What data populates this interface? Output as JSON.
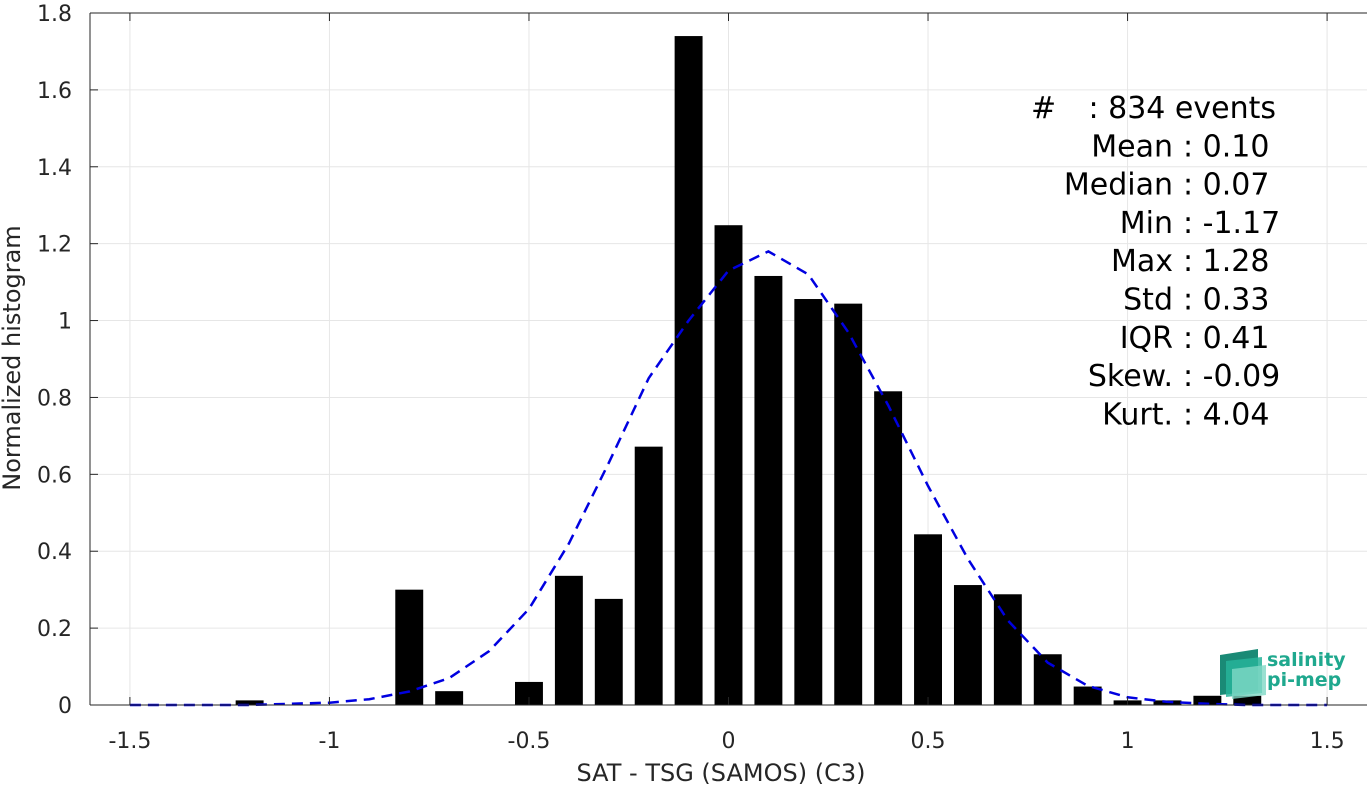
{
  "chart_data": {
    "type": "bar",
    "xlabel": "SAT - TSG (SAMOS) (C3)",
    "ylabel": "Normalized histogram",
    "xlim": [
      -1.6,
      1.6
    ],
    "ylim": [
      0,
      1.8
    ],
    "xticks": [
      -1.5,
      -1,
      -0.5,
      0,
      0.5,
      1,
      1.5
    ],
    "xtick_labels": [
      "-1.5",
      "-1",
      "-0.5",
      "0",
      "0.5",
      "1",
      "1.5"
    ],
    "yticks": [
      0,
      0.2,
      0.4,
      0.6,
      0.8,
      1,
      1.2,
      1.4,
      1.6,
      1.8
    ],
    "ytick_labels": [
      "0",
      "0.2",
      "0.4",
      "0.6",
      "0.8",
      "1",
      "1.2",
      "1.4",
      "1.6",
      "1.8"
    ],
    "grid": true,
    "bar_color": "#000000",
    "bar_width": 0.07,
    "bars": [
      {
        "x": -1.2,
        "y": 0.012
      },
      {
        "x": -0.8,
        "y": 0.3
      },
      {
        "x": -0.7,
        "y": 0.036
      },
      {
        "x": -0.5,
        "y": 0.06
      },
      {
        "x": -0.4,
        "y": 0.336
      },
      {
        "x": -0.3,
        "y": 0.276
      },
      {
        "x": -0.2,
        "y": 0.672
      },
      {
        "x": -0.1,
        "y": 1.74
      },
      {
        "x": 0.0,
        "y": 1.248
      },
      {
        "x": 0.1,
        "y": 1.116
      },
      {
        "x": 0.2,
        "y": 1.056
      },
      {
        "x": 0.3,
        "y": 1.044
      },
      {
        "x": 0.4,
        "y": 0.816
      },
      {
        "x": 0.5,
        "y": 0.444
      },
      {
        "x": 0.6,
        "y": 0.312
      },
      {
        "x": 0.7,
        "y": 0.288
      },
      {
        "x": 0.8,
        "y": 0.132
      },
      {
        "x": 0.9,
        "y": 0.048
      },
      {
        "x": 1.0,
        "y": 0.012
      },
      {
        "x": 1.1,
        "y": 0.012
      },
      {
        "x": 1.2,
        "y": 0.024
      },
      {
        "x": 1.3,
        "y": 0.024
      }
    ],
    "fit_curve": {
      "color": "#0000e0",
      "style": "dashed",
      "x": [
        -1.5,
        -1.4,
        -1.3,
        -1.2,
        -1.1,
        -1.0,
        -0.9,
        -0.8,
        -0.7,
        -0.6,
        -0.5,
        -0.4,
        -0.3,
        -0.2,
        -0.1,
        0.0,
        0.1,
        0.2,
        0.3,
        0.4,
        0.5,
        0.6,
        0.7,
        0.8,
        0.9,
        1.0,
        1.1,
        1.2,
        1.3,
        1.4,
        1.5
      ],
      "y": [
        0.0,
        0.0,
        0.0,
        0.0,
        0.003,
        0.006,
        0.015,
        0.035,
        0.07,
        0.14,
        0.25,
        0.42,
        0.63,
        0.85,
        1.0,
        1.13,
        1.18,
        1.12,
        0.97,
        0.78,
        0.57,
        0.38,
        0.22,
        0.11,
        0.05,
        0.02,
        0.008,
        0.003,
        0.0,
        0.0,
        0.0
      ]
    }
  },
  "stats": [
    {
      "label": "#",
      "sep": ":",
      "value": "834 events"
    },
    {
      "label": "Mean",
      "sep": ":",
      "value": "0.10"
    },
    {
      "label": "Median",
      "sep": ":",
      "value": "0.07"
    },
    {
      "label": "Min",
      "sep": ":",
      "value": "-1.17"
    },
    {
      "label": "Max",
      "sep": ":",
      "value": "1.28"
    },
    {
      "label": "Std",
      "sep": ":",
      "value": "0.33"
    },
    {
      "label": "IQR",
      "sep": ":",
      "value": "0.41"
    },
    {
      "label": "Skew.",
      "sep": ":",
      "value": "-0.09"
    },
    {
      "label": "Kurt.",
      "sep": ":",
      "value": "4.04"
    }
  ],
  "logo": {
    "line1": "salinity",
    "line2": "pi-mep",
    "color": "#1fa88e"
  }
}
